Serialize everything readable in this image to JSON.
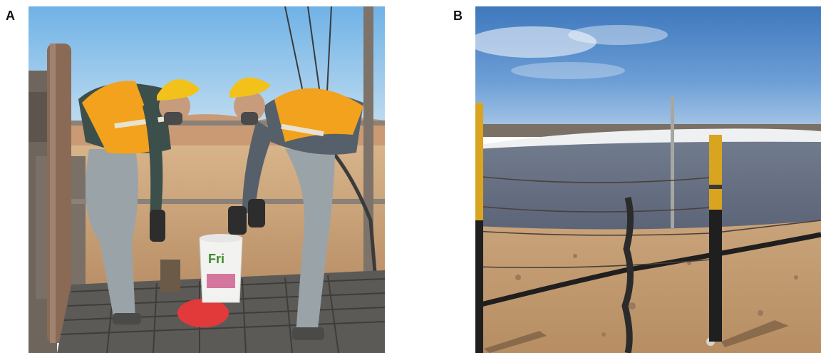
{
  "panels": [
    {
      "label": "A",
      "bucket_text": "Fri"
    },
    {
      "label": "B"
    }
  ],
  "colors": {
    "sky_a": "#8fc3e8",
    "sky_b": "#4f86c4",
    "vest_orange": "#f2a21c",
    "hard_hat": "#f2c21a",
    "desert_ground": "#c9a37a",
    "pond_water": "#6a7486",
    "fence_post_yellow": "#d9a521",
    "lid_red": "#e23a3a"
  }
}
